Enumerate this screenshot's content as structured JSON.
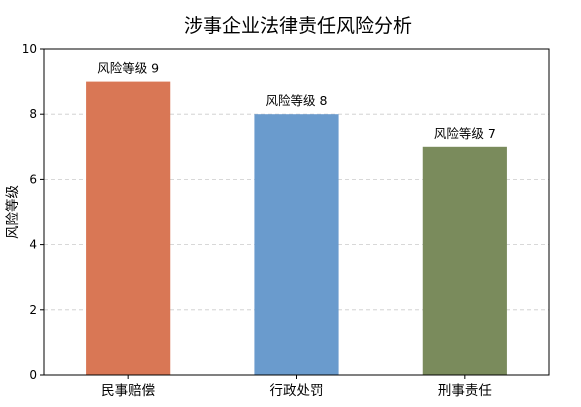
{
  "chart_data": {
    "type": "bar",
    "title": "涉事企业法律责任风险分析",
    "xlabel": "",
    "ylabel": "风险等级",
    "categories": [
      "民事赔偿",
      "行政处罚",
      "刑事责任"
    ],
    "values": [
      9,
      8,
      7
    ],
    "data_labels": [
      "风险等级 9",
      "风险等级 8",
      "风险等级 7"
    ],
    "colors": [
      "#d97755",
      "#6a9bcd",
      "#7a8b5c"
    ],
    "ylim": [
      0,
      10
    ],
    "yticks": [
      "0",
      "2",
      "4",
      "6",
      "8",
      "10"
    ],
    "grid": "y-dashed",
    "legend": "none"
  }
}
